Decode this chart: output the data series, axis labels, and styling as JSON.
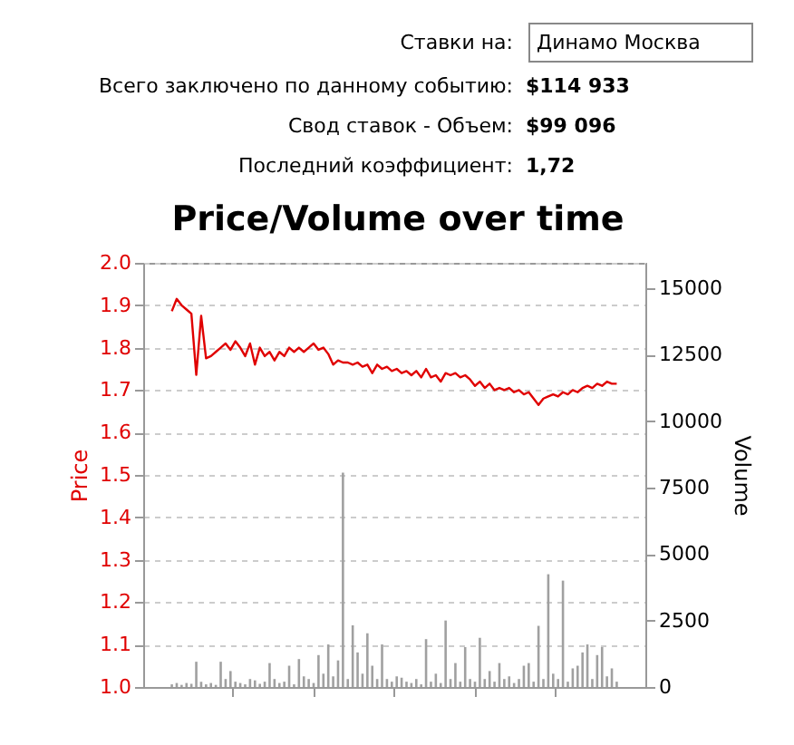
{
  "chart_data": {
    "type": "line",
    "title": "Price/Volume over time",
    "ylabel": "Price",
    "y2label": "Volume",
    "annotations": [
      "Ставки на:",
      "Динамо Москва",
      "Всего заключено по данному событию:",
      "$114 933",
      "Свод ставок - Объем:",
      "$99 096",
      "Последний коэффициент:",
      "1,72"
    ],
    "categories": [
      null,
      null,
      null,
      null,
      null,
      null,
      null,
      null,
      null,
      null,
      null,
      null,
      null,
      null,
      null,
      null,
      null,
      null,
      null,
      null,
      null,
      null,
      null,
      null,
      null,
      null,
      null,
      null,
      null,
      null,
      null,
      null,
      null,
      null,
      null,
      null,
      null,
      null,
      null,
      null,
      null,
      null,
      null,
      null,
      null,
      null,
      null,
      null,
      null,
      null,
      null,
      null,
      null,
      null,
      null,
      null,
      null,
      null,
      null,
      null,
      null,
      null,
      null,
      null,
      null,
      null,
      null,
      null,
      null,
      null,
      null,
      null,
      null,
      null,
      null,
      null,
      null,
      null,
      null,
      null,
      null,
      null,
      null,
      null,
      null,
      null,
      null,
      null,
      null,
      null,
      null,
      null
    ],
    "series": [
      {
        "type": "bar",
        "axis": "y2",
        "color": "#a0a0a0",
        "values": [
          100,
          150,
          80,
          150,
          120,
          950,
          200,
          100,
          150,
          80,
          950,
          300,
          600,
          200,
          150,
          100,
          300,
          250,
          120,
          200,
          900,
          300,
          150,
          200,
          800,
          100,
          1050,
          400,
          300,
          150,
          1200,
          500,
          1600,
          400,
          1000,
          8060,
          300,
          2320,
          1300,
          500,
          2020,
          800,
          300,
          1600,
          300,
          200,
          400,
          350,
          200,
          150,
          300,
          100,
          1800,
          200,
          500,
          150,
          2500,
          300,
          900,
          200,
          1500,
          300,
          200,
          1850,
          300,
          600,
          200,
          900,
          300,
          400,
          150,
          300,
          800,
          900,
          200,
          2300,
          300,
          4240,
          500,
          300,
          4000,
          200,
          700,
          800,
          1300,
          1600,
          300,
          1200,
          1500,
          400,
          700,
          200
        ]
      },
      {
        "color": "#e00000",
        "values": [
          1.886,
          1.915,
          1.9,
          1.89,
          1.88,
          1.736,
          1.875,
          1.775,
          1.78,
          1.79,
          1.8,
          1.81,
          1.795,
          1.815,
          1.8,
          1.78,
          1.81,
          1.76,
          1.8,
          1.78,
          1.79,
          1.77,
          1.79,
          1.78,
          1.8,
          1.79,
          1.8,
          1.79,
          1.8,
          1.81,
          1.795,
          1.8,
          1.785,
          1.76,
          1.77,
          1.765,
          1.765,
          1.76,
          1.765,
          1.755,
          1.76,
          1.74,
          1.76,
          1.75,
          1.755,
          1.745,
          1.75,
          1.74,
          1.745,
          1.735,
          1.745,
          1.73,
          1.75,
          1.73,
          1.735,
          1.72,
          1.74,
          1.735,
          1.74,
          1.73,
          1.735,
          1.725,
          1.71,
          1.72,
          1.705,
          1.715,
          1.7,
          1.705,
          1.7,
          1.705,
          1.695,
          1.7,
          1.69,
          1.695,
          1.68,
          1.665,
          1.68,
          1.685,
          1.69,
          1.685,
          1.695,
          1.69,
          1.7,
          1.695,
          1.705,
          1.71,
          1.705,
          1.715,
          1.71,
          1.72,
          1.715,
          1.715
        ]
      }
    ],
    "ylim": [
      1.0,
      2.0
    ],
    "yticks": [
      {
        "value": 1,
        "label": "1.0"
      },
      1.1,
      1.2,
      1.3,
      1.4,
      1.5,
      1.6,
      1.7,
      1.8,
      1.9,
      {
        "value": 2,
        "label": "2.0"
      }
    ],
    "y2lim": [
      0,
      15950
    ],
    "y2ticks": [
      0,
      2500,
      5000,
      7500,
      10000,
      12500,
      15000
    ],
    "grid": "y",
    "tick_labels": "y"
  }
}
